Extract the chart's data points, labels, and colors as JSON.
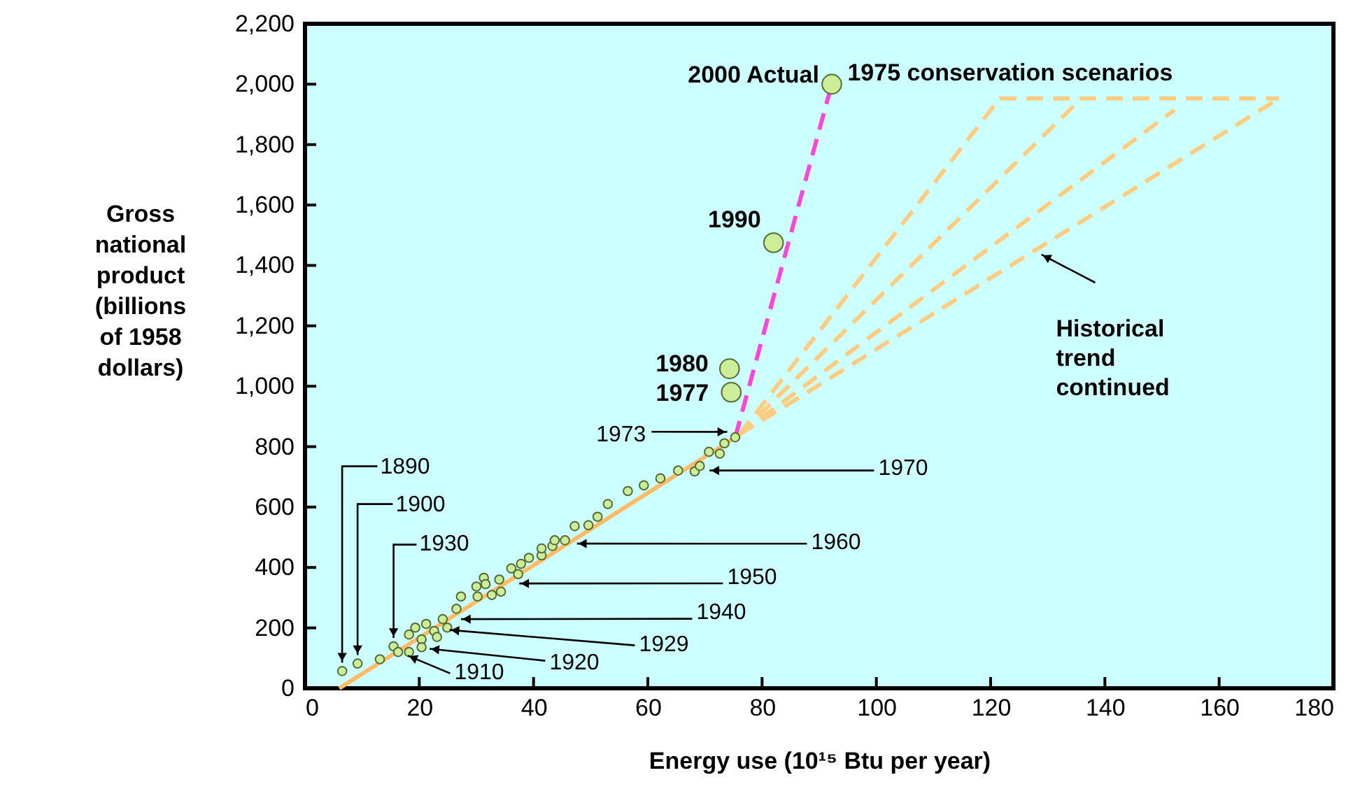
{
  "chart_data": {
    "type": "scatter",
    "xlabel": "Energy use (10¹⁵ Btu per year)",
    "ylabel": "Gross national product (billions of 1958 dollars)",
    "xlim": [
      0,
      180
    ],
    "xticks": [
      0,
      20,
      40,
      60,
      80,
      100,
      120,
      140,
      160,
      180
    ],
    "ylim": [
      0,
      2200
    ],
    "yticks": [
      {
        "value": 0,
        "label": "0"
      },
      {
        "value": 200,
        "label": "200"
      },
      {
        "value": 400,
        "label": "400"
      },
      {
        "value": 600,
        "label": "600"
      },
      {
        "value": 800,
        "label": "800"
      },
      {
        "value": 1000,
        "label": "1,000"
      },
      {
        "value": 1200,
        "label": "1,200"
      },
      {
        "value": 1400,
        "label": "1,400"
      },
      {
        "value": 1600,
        "label": "1,600"
      },
      {
        "value": 1800,
        "label": "1,800"
      },
      {
        "value": 2000,
        "label": "2,000"
      },
      {
        "value": 2200,
        "label": "2,200"
      }
    ],
    "grid": false,
    "series": [
      {
        "type": "line",
        "color": "#ffbb66",
        "line_style": "solid",
        "x": [
          6,
          76.3
        ],
        "values": [
          0,
          842
        ]
      },
      {
        "type": "line",
        "color": "#ffcc80",
        "line_style": "dashed",
        "x": [
          76,
          121.6,
          170.5
        ],
        "values": [
          840,
          1953,
          1953
        ]
      },
      {
        "type": "line",
        "color": "#ffcc80",
        "line_style": "dashed",
        "x": [
          76,
          135.9
        ],
        "values": [
          840,
          1953
        ]
      },
      {
        "type": "line",
        "color": "#ffcc80",
        "line_style": "dashed",
        "x": [
          76,
          152.2
        ],
        "values": [
          840,
          1915
        ]
      },
      {
        "type": "line",
        "color": "#ffcc80",
        "line_style": "dashed",
        "x": [
          76,
          170.5
        ],
        "values": [
          840,
          1953
        ]
      },
      {
        "type": "line",
        "color": "#ff44dd",
        "line_style": "dashed",
        "x": [
          75.3,
          92.2
        ],
        "values": [
          831,
          2000
        ]
      },
      {
        "color": "#ccee99",
        "marker": "circle",
        "x": [
          6.5,
          9.2,
          13.1,
          15.5,
          16.3,
          18.2,
          18.2,
          19.3,
          21.2,
          20.4,
          20.4,
          22.6,
          23.1,
          24.1,
          24.9,
          26.5,
          27.3,
          30.0,
          30.2,
          31.3,
          31.6,
          32.7,
          34.0,
          34.3,
          36.1,
          37.3,
          37.8,
          39.2,
          41.4,
          41.4,
          43.3,
          43.7,
          45.5,
          47.2,
          49.6,
          51.2,
          53.0,
          56.5,
          59.3,
          62.2,
          65.3,
          68.2,
          69.1,
          70.7,
          72.6,
          73.4,
          75.3
        ],
        "values": [
          57,
          82,
          96,
          139,
          120,
          120,
          178,
          201,
          213,
          162,
          136,
          190,
          170,
          229,
          201,
          263,
          304,
          337,
          304,
          366,
          345,
          309,
          360,
          320,
          397,
          378,
          412,
          432,
          440,
          463,
          471,
          490,
          490,
          537,
          540,
          568,
          610,
          653,
          672,
          695,
          721,
          718,
          736,
          783,
          777,
          811,
          831
        ]
      },
      {
        "color": "#ccee99",
        "marker": "circle",
        "x": [
          74.6,
          74.3,
          82.0,
          92.2
        ],
        "values": [
          980,
          1058,
          1475,
          2000
        ]
      }
    ],
    "annotations": [
      {
        "text": "1890",
        "x": 6.5,
        "y": 57
      },
      {
        "text": "1900",
        "x": 9.2,
        "y": 82
      },
      {
        "text": "1930",
        "x": 15.5,
        "y": 139
      },
      {
        "text": "1910",
        "x": 18.0,
        "y": 108
      },
      {
        "text": "1920",
        "x": 21.8,
        "y": 131
      },
      {
        "text": "1929",
        "x": 25.3,
        "y": 193
      },
      {
        "text": "1940",
        "x": 27.3,
        "y": 229
      },
      {
        "text": "1950",
        "x": 37.5,
        "y": 347
      },
      {
        "text": "1960",
        "x": 47.6,
        "y": 479
      },
      {
        "text": "1970",
        "x": 70.8,
        "y": 721
      },
      {
        "text": "1973",
        "x": 73.9,
        "y": 849
      },
      {
        "text": "1977",
        "x": 74.6,
        "y": 980
      },
      {
        "text": "1980",
        "x": 74.3,
        "y": 1058
      },
      {
        "text": "1990",
        "x": 82.0,
        "y": 1475
      },
      {
        "text": "2000 Actual",
        "x": 92.2,
        "y": 2000
      },
      "1975 conservation scenarios",
      {
        "text": "Historical trend continued",
        "x": 128.9,
        "y": 1436
      }
    ]
  }
}
